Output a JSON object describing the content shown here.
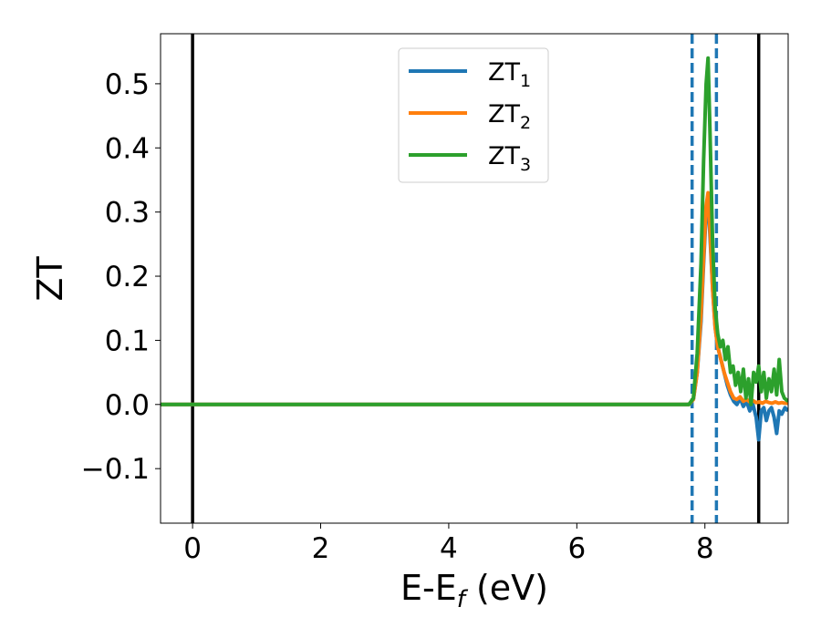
{
  "chart_data": {
    "type": "line",
    "title": "",
    "xlabel_main": "E-E",
    "xlabel_subscript": "f",
    "xlabel_unit": " (eV)",
    "ylabel": "ZT",
    "xlim": [
      -0.5,
      9.3
    ],
    "ylim": [
      -0.185,
      0.578
    ],
    "x_ticks": [
      0,
      2,
      4,
      6,
      8
    ],
    "x_tick_labels": [
      "0",
      "2",
      "4",
      "6",
      "8"
    ],
    "y_ticks": [
      -0.1,
      0.0,
      0.1,
      0.2,
      0.3,
      0.4,
      0.5
    ],
    "y_tick_labels": [
      "−0.1",
      "0.0",
      "0.1",
      "0.2",
      "0.3",
      "0.4",
      "0.5"
    ],
    "grid": false,
    "legend_position": "top-center",
    "colors": {
      "ZT1": "#1f77b4",
      "ZT2": "#ff7f0e",
      "ZT3": "#2ca02c",
      "vline_solid": "#000000",
      "vline_dashed": "#1f77b4"
    },
    "vertical_lines": [
      {
        "x": 0.0,
        "style": "solid",
        "color": "#000000"
      },
      {
        "x": 7.8,
        "style": "dashed",
        "color": "#1f77b4"
      },
      {
        "x": 8.18,
        "style": "dashed",
        "color": "#1f77b4"
      },
      {
        "x": 8.84,
        "style": "solid",
        "color": "#000000"
      }
    ],
    "series": [
      {
        "name": "ZT",
        "subscript": "1",
        "color": "#1f77b4",
        "x": [
          -0.5,
          7.75,
          7.82,
          7.88,
          7.94,
          7.98,
          8.02,
          8.05,
          8.08,
          8.12,
          8.16,
          8.2,
          8.25,
          8.3,
          8.35,
          8.4,
          8.45,
          8.5,
          8.55,
          8.6,
          8.65,
          8.7,
          8.75,
          8.8,
          8.84,
          8.88,
          8.92,
          8.96,
          9.0,
          9.04,
          9.08,
          9.12,
          9.16,
          9.2,
          9.25,
          9.3
        ],
        "y": [
          0.0,
          0.0,
          0.008,
          0.05,
          0.13,
          0.22,
          0.3,
          0.32,
          0.26,
          0.18,
          0.12,
          0.09,
          0.07,
          0.05,
          0.03,
          0.015,
          0.005,
          0.0,
          0.01,
          -0.003,
          0.005,
          -0.01,
          0.0,
          -0.02,
          -0.055,
          -0.01,
          -0.005,
          -0.025,
          -0.01,
          -0.005,
          -0.02,
          -0.045,
          -0.01,
          -0.015,
          -0.005,
          -0.01
        ]
      },
      {
        "name": "ZT",
        "subscript": "2",
        "color": "#ff7f0e",
        "x": [
          -0.5,
          7.75,
          7.82,
          7.88,
          7.94,
          7.98,
          8.02,
          8.05,
          8.08,
          8.12,
          8.16,
          8.2,
          8.25,
          8.3,
          8.35,
          8.4,
          8.45,
          8.5,
          8.55,
          8.6,
          8.65,
          8.7,
          8.75,
          8.8,
          8.85,
          8.9,
          8.95,
          9.0,
          9.05,
          9.1,
          9.15,
          9.2,
          9.25,
          9.3
        ],
        "y": [
          0.0,
          0.0,
          0.008,
          0.05,
          0.14,
          0.23,
          0.31,
          0.33,
          0.27,
          0.18,
          0.12,
          0.09,
          0.07,
          0.05,
          0.035,
          0.02,
          0.01,
          0.008,
          0.012,
          0.005,
          0.008,
          0.004,
          0.006,
          0.003,
          0.004,
          0.002,
          0.005,
          0.003,
          0.002,
          0.004,
          0.002,
          0.003,
          0.002,
          0.002
        ]
      },
      {
        "name": "ZT",
        "subscript": "3",
        "color": "#2ca02c",
        "x": [
          -0.5,
          7.75,
          7.82,
          7.88,
          7.94,
          7.98,
          8.02,
          8.05,
          8.08,
          8.12,
          8.16,
          8.2,
          8.24,
          8.28,
          8.32,
          8.36,
          8.4,
          8.44,
          8.48,
          8.52,
          8.56,
          8.6,
          8.64,
          8.68,
          8.72,
          8.76,
          8.8,
          8.84,
          8.88,
          8.92,
          8.96,
          9.0,
          9.04,
          9.08,
          9.12,
          9.16,
          9.2,
          9.24,
          9.3
        ],
        "y": [
          0.0,
          0.0,
          0.01,
          0.08,
          0.22,
          0.38,
          0.5,
          0.54,
          0.42,
          0.25,
          0.15,
          0.11,
          0.09,
          0.1,
          0.07,
          0.09,
          0.05,
          0.06,
          0.03,
          0.05,
          0.02,
          0.055,
          0.01,
          0.04,
          0.0,
          0.05,
          0.035,
          0.06,
          0.02,
          0.05,
          0.01,
          0.04,
          0.02,
          0.055,
          0.015,
          0.07,
          0.02,
          0.01,
          0.005
        ]
      }
    ]
  }
}
